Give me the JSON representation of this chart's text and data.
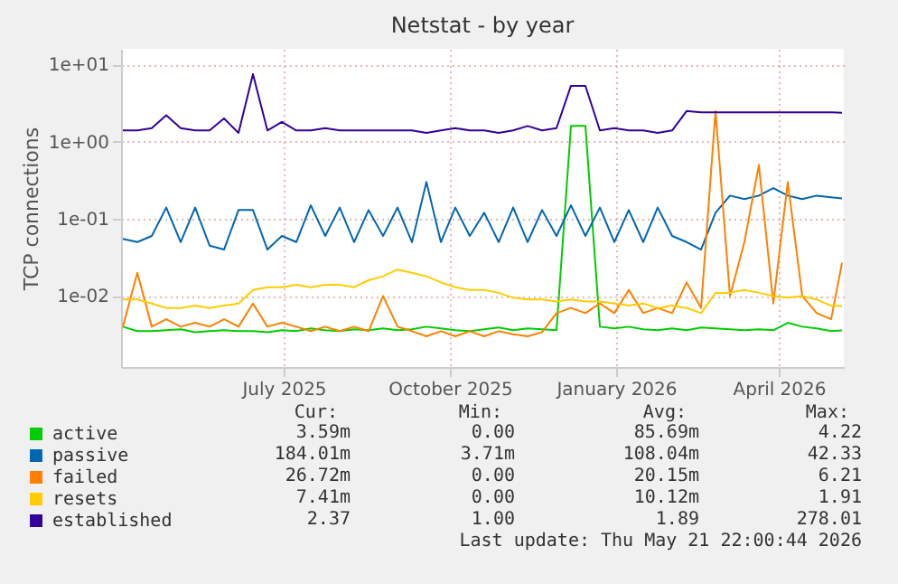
{
  "chart_data": {
    "type": "line",
    "title": "Netstat - by year",
    "ylabel": "TCP connections",
    "x": [
      "2025-04-18",
      "2025-04-26",
      "2025-05-04",
      "2025-05-12",
      "2025-05-20",
      "2025-05-28",
      "2025-06-05",
      "2025-06-13",
      "2025-06-21",
      "2025-06-29",
      "2025-07-07",
      "2025-07-15",
      "2025-07-23",
      "2025-07-31",
      "2025-08-08",
      "2025-08-16",
      "2025-08-24",
      "2025-09-01",
      "2025-09-09",
      "2025-09-17",
      "2025-09-25",
      "2025-10-03",
      "2025-10-11",
      "2025-10-19",
      "2025-10-27",
      "2025-11-04",
      "2025-11-12",
      "2025-11-20",
      "2025-11-28",
      "2025-12-06",
      "2025-12-14",
      "2025-12-22",
      "2025-12-30",
      "2026-01-07",
      "2026-01-15",
      "2026-01-23",
      "2026-01-31",
      "2026-02-08",
      "2026-02-16",
      "2026-02-24",
      "2026-03-04",
      "2026-03-12",
      "2026-03-20",
      "2026-03-28",
      "2026-04-05",
      "2026-04-13",
      "2026-04-21",
      "2026-04-29",
      "2026-05-07",
      "2026-05-15",
      "2026-05-21"
    ],
    "series": [
      {
        "name": "active",
        "color": "#00cc00",
        "values": [
          0.004,
          0.0035,
          0.0035,
          0.0036,
          0.0037,
          0.0034,
          0.0035,
          0.0036,
          0.0035,
          0.0035,
          0.0034,
          0.0036,
          0.0035,
          0.0038,
          0.0036,
          0.0035,
          0.0037,
          0.0036,
          0.0038,
          0.0036,
          0.0037,
          0.004,
          0.0038,
          0.0036,
          0.0035,
          0.0037,
          0.0039,
          0.0036,
          0.0038,
          0.0037,
          0.0036,
          1.6,
          1.6,
          0.004,
          0.0038,
          0.004,
          0.0037,
          0.0036,
          0.0038,
          0.0036,
          0.0039,
          0.0038,
          0.0037,
          0.0036,
          0.0037,
          0.0036,
          0.0045,
          0.004,
          0.0038,
          0.0035,
          0.00359
        ]
      },
      {
        "name": "passive",
        "color": "#0066b3",
        "values": [
          0.055,
          0.05,
          0.06,
          0.14,
          0.05,
          0.14,
          0.045,
          0.04,
          0.13,
          0.13,
          0.04,
          0.06,
          0.05,
          0.15,
          0.06,
          0.14,
          0.05,
          0.13,
          0.06,
          0.14,
          0.05,
          0.3,
          0.05,
          0.14,
          0.06,
          0.12,
          0.05,
          0.14,
          0.05,
          0.13,
          0.06,
          0.15,
          0.06,
          0.14,
          0.05,
          0.13,
          0.05,
          0.14,
          0.06,
          0.05,
          0.04,
          0.12,
          0.2,
          0.18,
          0.2,
          0.25,
          0.2,
          0.18,
          0.2,
          0.19,
          0.184
        ]
      },
      {
        "name": "failed",
        "color": "#ff8000",
        "values": [
          0.004,
          0.02,
          0.004,
          0.005,
          0.004,
          0.0045,
          0.004,
          0.005,
          0.004,
          0.008,
          0.004,
          0.0045,
          0.004,
          0.0035,
          0.004,
          0.0035,
          0.004,
          0.0035,
          0.01,
          0.004,
          0.0035,
          0.003,
          0.0035,
          0.003,
          0.0035,
          0.003,
          0.0035,
          0.0032,
          0.003,
          0.0034,
          0.006,
          0.007,
          0.006,
          0.008,
          0.006,
          0.012,
          0.006,
          0.007,
          0.006,
          0.015,
          0.007,
          2.5,
          0.01,
          0.05,
          0.5,
          0.008,
          0.3,
          0.01,
          0.006,
          0.005,
          0.027
        ]
      },
      {
        "name": "resets",
        "color": "#ffcc00",
        "values": [
          0.009,
          0.009,
          0.008,
          0.007,
          0.007,
          0.0075,
          0.007,
          0.0075,
          0.008,
          0.012,
          0.013,
          0.013,
          0.014,
          0.013,
          0.014,
          0.014,
          0.013,
          0.016,
          0.018,
          0.022,
          0.02,
          0.018,
          0.015,
          0.013,
          0.012,
          0.012,
          0.011,
          0.0095,
          0.009,
          0.009,
          0.0085,
          0.009,
          0.0085,
          0.0085,
          0.008,
          0.0075,
          0.008,
          0.007,
          0.0075,
          0.007,
          0.006,
          0.011,
          0.011,
          0.012,
          0.011,
          0.01,
          0.0095,
          0.01,
          0.009,
          0.0075,
          0.0074
        ]
      },
      {
        "name": "established",
        "color": "#330099",
        "values": [
          1.4,
          1.4,
          1.5,
          2.2,
          1.5,
          1.4,
          1.4,
          2.0,
          1.3,
          7.5,
          1.4,
          1.8,
          1.4,
          1.4,
          1.5,
          1.4,
          1.4,
          1.4,
          1.4,
          1.4,
          1.4,
          1.3,
          1.4,
          1.5,
          1.4,
          1.4,
          1.3,
          1.4,
          1.6,
          1.4,
          1.5,
          5.3,
          5.3,
          1.4,
          1.5,
          1.4,
          1.4,
          1.3,
          1.4,
          2.5,
          2.4,
          2.4,
          2.4,
          2.4,
          2.4,
          2.4,
          2.4,
          2.4,
          2.4,
          2.4,
          2.37
        ]
      }
    ],
    "xlim": [
      "2025-04-17",
      "2026-05-22"
    ],
    "xticks": [
      {
        "value": "2025-07-16",
        "label": "July 2025"
      },
      {
        "value": "2025-10-16",
        "label": "October 2025"
      },
      {
        "value": "2026-01-16",
        "label": "January 2026"
      },
      {
        "value": "2026-04-16",
        "label": "April 2026"
      }
    ],
    "ylim": [
      0.0012,
      16
    ],
    "log": true,
    "yticks": [
      {
        "value": 0.01,
        "label": "1e-02"
      },
      {
        "value": 0.1,
        "label": "1e-01"
      },
      {
        "value": 1,
        "label": "1e+00"
      },
      {
        "value": 10,
        "label": "1e+01"
      }
    ],
    "grid": true,
    "legend": "bottom left",
    "annotations": [
      "Cur:",
      "Min:",
      "Avg:",
      "Max:",
      "3.59m",
      "0.00",
      "85.69m",
      "4.22",
      "184.01m",
      "3.71m",
      "108.04m",
      "42.33",
      "26.72m",
      "0.00",
      "20.15m",
      "6.21",
      "7.41m",
      "0.00",
      "10.12m",
      "1.91",
      "2.37",
      "1.00",
      "1.89",
      "278.01",
      "Last update: Thu May 21 22:00:44 2026"
    ]
  }
}
